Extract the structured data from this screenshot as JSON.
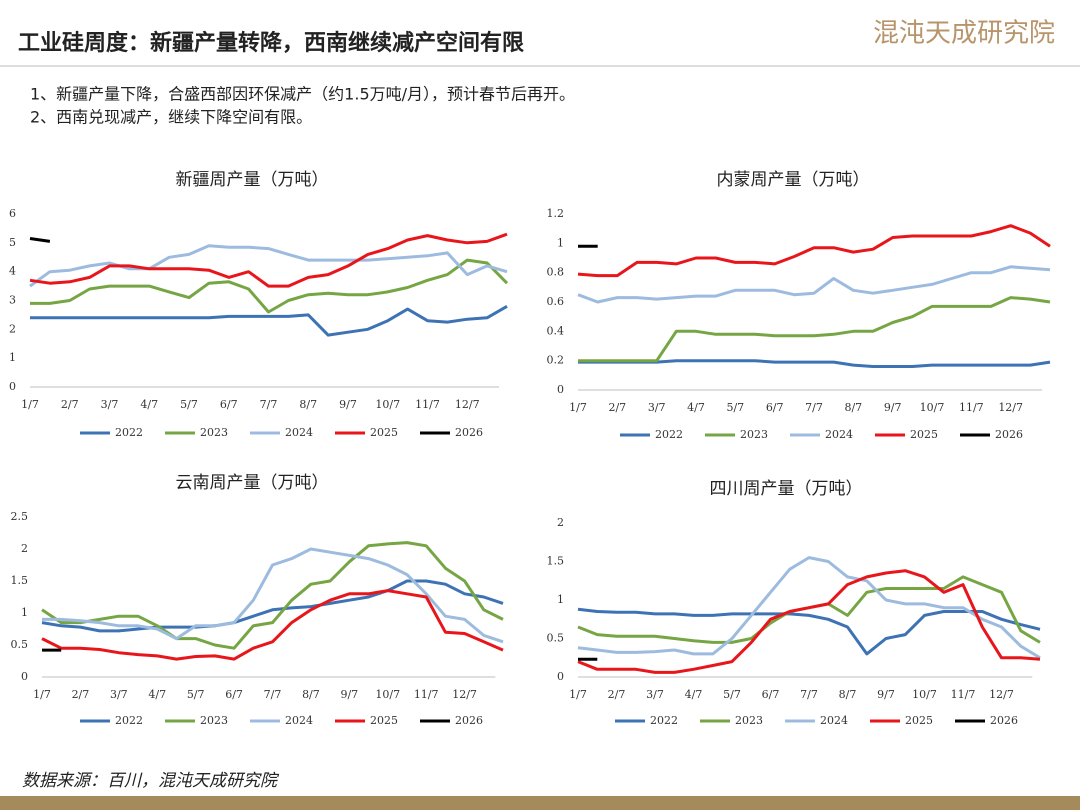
{
  "header": {
    "title": "工业硅周度：新疆产量转降，西南继续减产空间有限",
    "logo": "混沌天成研究院"
  },
  "notes": [
    "1、新疆产量下降，合盛西部因环保减产（约1.5万吨/月），预计春节后再开。",
    "2、西南兑现减产，继续下降空间有限。"
  ],
  "source": "数据来源：百川，混沌天成研究院",
  "chart_data": [
    {
      "type": "line",
      "title": "新疆周产量（万吨）",
      "categories": [
        "1/7",
        null,
        "2/7",
        null,
        "3/7",
        null,
        "4/7",
        null,
        "5/7",
        null,
        "6/7",
        null,
        "7/7",
        null,
        "8/7",
        null,
        "9/7",
        null,
        "10/7",
        null,
        "11/7",
        null,
        "12/7",
        null,
        null
      ],
      "ylim": [
        0,
        6
      ],
      "yticks": [
        0,
        1,
        2,
        3,
        4,
        5,
        6
      ],
      "series": [
        {
          "name": "2022",
          "color": "#3d72b4",
          "values": [
            2.4,
            2.4,
            2.4,
            2.4,
            2.4,
            2.4,
            2.4,
            2.4,
            2.4,
            2.4,
            2.45,
            2.45,
            2.45,
            2.45,
            2.5,
            1.8,
            1.9,
            2.0,
            2.3,
            2.7,
            2.3,
            2.25,
            2.35,
            2.4,
            2.8
          ]
        },
        {
          "name": "2023",
          "color": "#76a544",
          "values": [
            2.9,
            2.9,
            3.0,
            3.4,
            3.5,
            3.5,
            3.5,
            3.3,
            3.1,
            3.6,
            3.65,
            3.4,
            2.6,
            3.0,
            3.2,
            3.25,
            3.2,
            3.2,
            3.3,
            3.45,
            3.7,
            3.9,
            4.4,
            4.3,
            3.6
          ]
        },
        {
          "name": "2024",
          "color": "#9dbbdf",
          "values": [
            3.5,
            4.0,
            4.05,
            4.2,
            4.3,
            4.1,
            4.1,
            4.5,
            4.6,
            4.9,
            4.85,
            4.85,
            4.8,
            4.6,
            4.4,
            4.4,
            4.4,
            4.4,
            4.45,
            4.5,
            4.55,
            4.65,
            3.9,
            4.2,
            4.0
          ]
        },
        {
          "name": "2025",
          "color": "#e8161b",
          "values": [
            3.7,
            3.6,
            3.65,
            3.8,
            4.2,
            4.2,
            4.1,
            4.1,
            4.1,
            4.05,
            3.8,
            4.0,
            3.5,
            3.5,
            3.8,
            3.9,
            4.2,
            4.6,
            4.8,
            5.1,
            5.25,
            5.1,
            5.0,
            5.05,
            5.3
          ]
        },
        {
          "name": "2026",
          "color": "#000000",
          "values": [
            5.15,
            5.05,
            null,
            null,
            null,
            null,
            null,
            null,
            null,
            null,
            null,
            null,
            null,
            null,
            null,
            null,
            null,
            null,
            null,
            null,
            null,
            null,
            null,
            null,
            null
          ]
        }
      ]
    },
    {
      "type": "line",
      "title": "内蒙周产量（万吨）",
      "categories": [
        "1/7",
        null,
        "2/7",
        null,
        "3/7",
        null,
        "4/7",
        null,
        "5/7",
        null,
        "6/7",
        null,
        "7/7",
        null,
        "8/7",
        null,
        "9/7",
        null,
        "10/7",
        null,
        "11/7",
        null,
        "12/7",
        null,
        null
      ],
      "ylim": [
        0,
        1.2
      ],
      "yticks": [
        0,
        0.2,
        0.4,
        0.6,
        0.8,
        1,
        1.2
      ],
      "series": [
        {
          "name": "2022",
          "color": "#3d72b4",
          "values": [
            0.19,
            0.19,
            0.19,
            0.19,
            0.19,
            0.2,
            0.2,
            0.2,
            0.2,
            0.2,
            0.19,
            0.19,
            0.19,
            0.19,
            0.17,
            0.16,
            0.16,
            0.16,
            0.17,
            0.17,
            0.17,
            0.17,
            0.17,
            0.17,
            0.19
          ]
        },
        {
          "name": "2023",
          "color": "#76a544",
          "values": [
            0.2,
            0.2,
            0.2,
            0.2,
            0.2,
            0.4,
            0.4,
            0.38,
            0.38,
            0.38,
            0.37,
            0.37,
            0.37,
            0.38,
            0.4,
            0.4,
            0.46,
            0.5,
            0.57,
            0.57,
            0.57,
            0.57,
            0.63,
            0.62,
            0.6
          ]
        },
        {
          "name": "2024",
          "color": "#9dbbdf",
          "values": [
            0.65,
            0.6,
            0.63,
            0.63,
            0.62,
            0.63,
            0.64,
            0.64,
            0.68,
            0.68,
            0.68,
            0.65,
            0.66,
            0.76,
            0.68,
            0.66,
            0.68,
            0.7,
            0.72,
            0.76,
            0.8,
            0.8,
            0.84,
            0.83,
            0.82
          ]
        },
        {
          "name": "2025",
          "color": "#e8161b",
          "values": [
            0.79,
            0.78,
            0.78,
            0.87,
            0.87,
            0.86,
            0.9,
            0.9,
            0.87,
            0.87,
            0.86,
            0.91,
            0.97,
            0.97,
            0.94,
            0.96,
            1.04,
            1.05,
            1.05,
            1.05,
            1.05,
            1.08,
            1.12,
            1.07,
            0.98
          ]
        },
        {
          "name": "2026",
          "color": "#000000",
          "values": [
            0.98,
            0.98,
            null,
            null,
            null,
            null,
            null,
            null,
            null,
            null,
            null,
            null,
            null,
            null,
            null,
            null,
            null,
            null,
            null,
            null,
            null,
            null,
            null,
            null,
            null
          ]
        }
      ]
    },
    {
      "type": "line",
      "title": "云南周产量（万吨）",
      "categories": [
        "1/7",
        null,
        "2/7",
        null,
        "3/7",
        null,
        "4/7",
        null,
        "5/7",
        null,
        "6/7",
        null,
        "7/7",
        null,
        "8/7",
        null,
        "9/7",
        null,
        "10/7",
        null,
        "11/7",
        null,
        "12/7",
        null,
        null
      ],
      "ylim": [
        0,
        2.5
      ],
      "yticks": [
        0,
        0.5,
        1,
        1.5,
        2,
        2.5
      ],
      "series": [
        {
          "name": "2022",
          "color": "#3d72b4",
          "values": [
            0.85,
            0.8,
            0.78,
            0.72,
            0.72,
            0.75,
            0.78,
            0.78,
            0.78,
            0.8,
            0.85,
            0.95,
            1.05,
            1.08,
            1.1,
            1.15,
            1.2,
            1.25,
            1.35,
            1.5,
            1.5,
            1.45,
            1.3,
            1.25,
            1.15
          ]
        },
        {
          "name": "2023",
          "color": "#76a544",
          "values": [
            1.05,
            0.85,
            0.85,
            0.9,
            0.95,
            0.95,
            0.8,
            0.6,
            0.6,
            0.5,
            0.45,
            0.8,
            0.85,
            1.2,
            1.45,
            1.5,
            1.8,
            2.05,
            2.08,
            2.1,
            2.05,
            1.7,
            1.5,
            1.05,
            0.9
          ]
        },
        {
          "name": "2024",
          "color": "#9dbbdf",
          "values": [
            0.9,
            0.9,
            0.88,
            0.85,
            0.8,
            0.8,
            0.75,
            0.6,
            0.8,
            0.8,
            0.85,
            1.2,
            1.75,
            1.85,
            2.0,
            1.95,
            1.9,
            1.85,
            1.75,
            1.6,
            1.3,
            0.95,
            0.9,
            0.65,
            0.55
          ]
        },
        {
          "name": "2025",
          "color": "#e8161b",
          "values": [
            0.6,
            0.45,
            0.45,
            0.43,
            0.38,
            0.35,
            0.33,
            0.28,
            0.32,
            0.33,
            0.28,
            0.45,
            0.55,
            0.85,
            1.05,
            1.2,
            1.3,
            1.3,
            1.35,
            1.3,
            1.25,
            0.7,
            0.68,
            0.55,
            0.42
          ]
        },
        {
          "name": "2026",
          "color": "#000000",
          "values": [
            0.42,
            0.42,
            null,
            null,
            null,
            null,
            null,
            null,
            null,
            null,
            null,
            null,
            null,
            null,
            null,
            null,
            null,
            null,
            null,
            null,
            null,
            null,
            null,
            null,
            null
          ]
        }
      ]
    },
    {
      "type": "line",
      "title": "四川周产量（万吨）",
      "categories": [
        "1/7",
        null,
        "2/7",
        null,
        "3/7",
        null,
        "4/7",
        null,
        "5/7",
        null,
        "6/7",
        null,
        "7/7",
        null,
        "8/7",
        null,
        "9/7",
        null,
        "10/7",
        null,
        "11/7",
        null,
        "12/7",
        null,
        null
      ],
      "ylim": [
        0,
        2
      ],
      "yticks": [
        0,
        0.5,
        1,
        1.5,
        2
      ],
      "series": [
        {
          "name": "2022",
          "color": "#3d72b4",
          "values": [
            0.88,
            0.85,
            0.84,
            0.84,
            0.82,
            0.82,
            0.8,
            0.8,
            0.82,
            0.82,
            0.82,
            0.82,
            0.8,
            0.75,
            0.65,
            0.3,
            0.5,
            0.55,
            0.8,
            0.85,
            0.85,
            0.85,
            0.75,
            0.68,
            0.62
          ]
        },
        {
          "name": "2023",
          "color": "#76a544",
          "values": [
            0.65,
            0.55,
            0.53,
            0.53,
            0.53,
            0.5,
            0.47,
            0.45,
            0.45,
            0.5,
            0.7,
            0.85,
            0.9,
            0.95,
            0.8,
            1.1,
            1.15,
            1.15,
            1.15,
            1.15,
            1.3,
            1.2,
            1.1,
            0.6,
            0.45
          ]
        },
        {
          "name": "2024",
          "color": "#9dbbdf",
          "values": [
            0.38,
            0.35,
            0.32,
            0.32,
            0.33,
            0.35,
            0.3,
            0.3,
            0.5,
            0.8,
            1.1,
            1.4,
            1.55,
            1.5,
            1.3,
            1.25,
            1.0,
            0.95,
            0.95,
            0.9,
            0.9,
            0.75,
            0.65,
            0.4,
            0.25
          ]
        },
        {
          "name": "2025",
          "color": "#e8161b",
          "values": [
            0.2,
            0.1,
            0.1,
            0.1,
            0.06,
            0.06,
            0.1,
            0.15,
            0.2,
            0.45,
            0.75,
            0.85,
            0.9,
            0.95,
            1.2,
            1.3,
            1.35,
            1.38,
            1.3,
            1.1,
            1.2,
            0.65,
            0.25,
            0.25,
            0.23
          ]
        },
        {
          "name": "2026",
          "color": "#000000",
          "values": [
            0.23,
            0.23,
            null,
            null,
            null,
            null,
            null,
            null,
            null,
            null,
            null,
            null,
            null,
            null,
            null,
            null,
            null,
            null,
            null,
            null,
            null,
            null,
            null,
            null,
            null
          ]
        }
      ]
    }
  ]
}
